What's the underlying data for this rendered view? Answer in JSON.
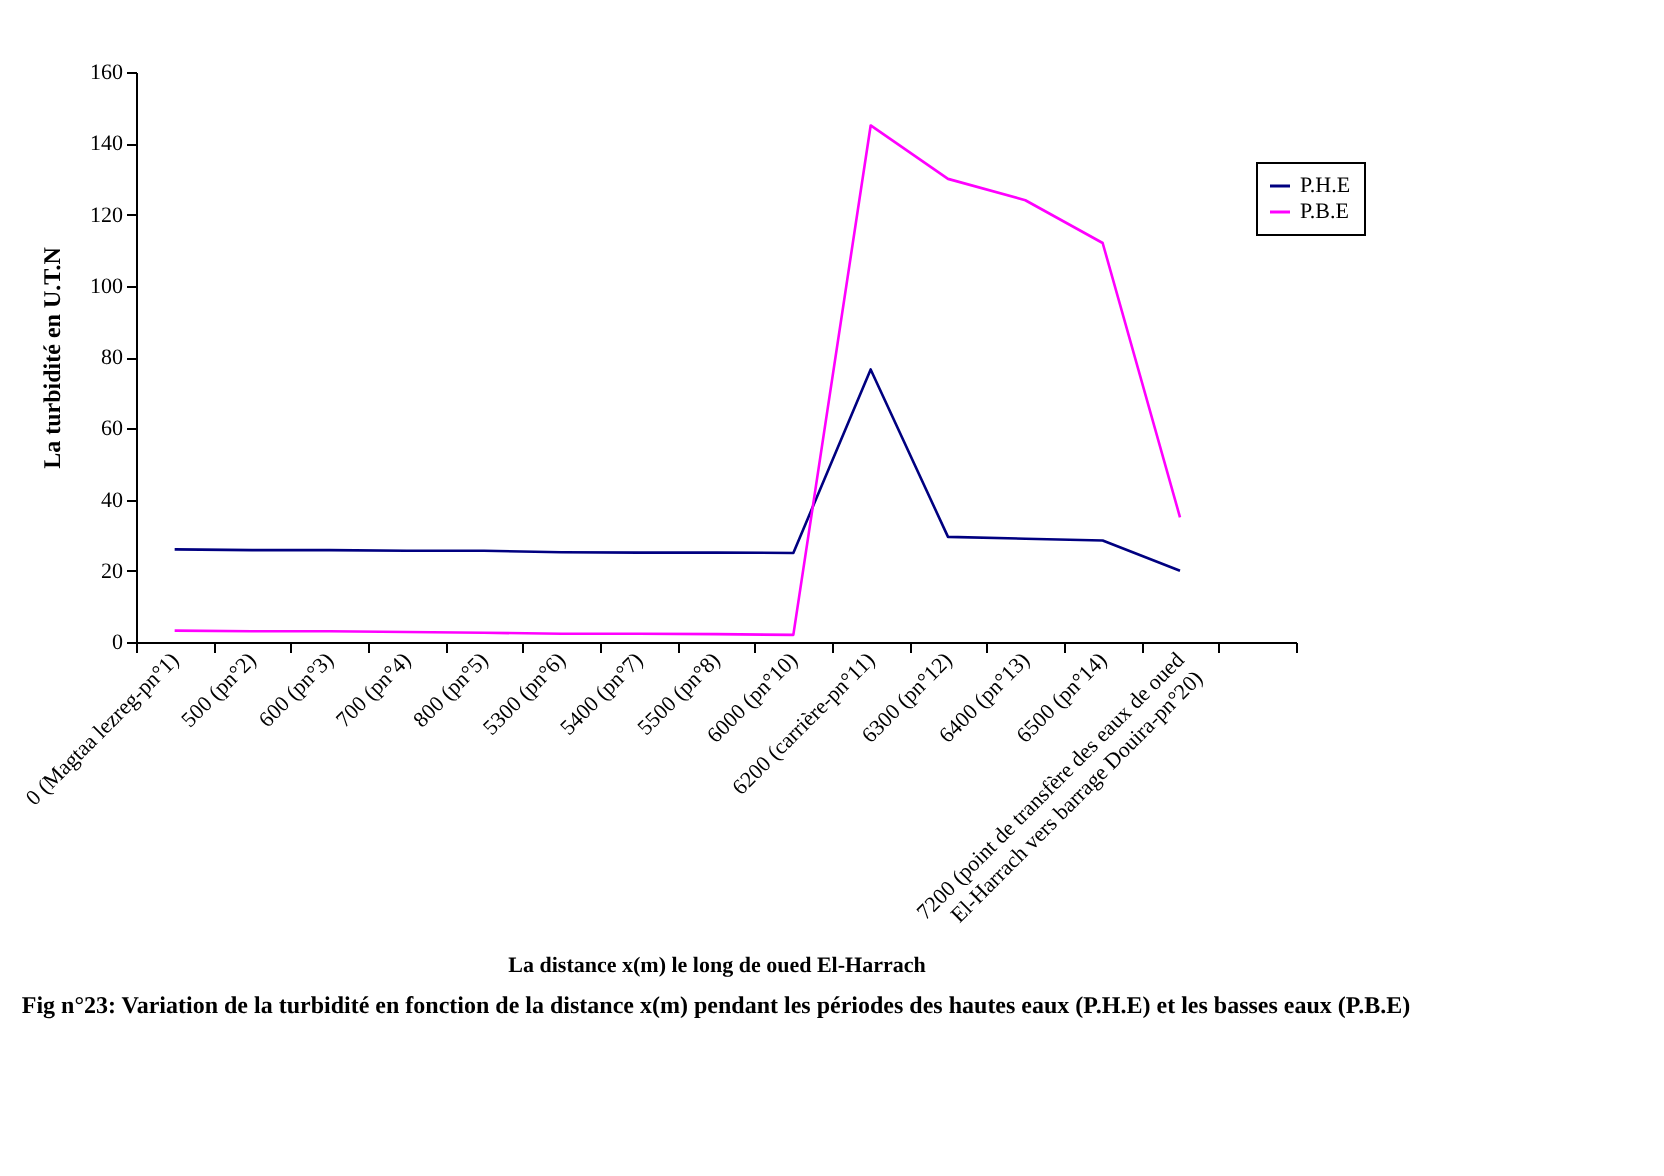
{
  "chart_data": {
    "type": "line",
    "title": "Fig n°23: Variation de la turbidité en fonction de la distance x(m) pendant les périodes des hautes eaux (P.H.E) et les basses eaux (P.B.E)",
    "xlabel": "La distance x(m) le long de oued El-Harrach",
    "ylabel": "La turbidité en U.T.N",
    "categories": [
      "0 (Magtaa lezreg-pn°1)",
      "500 (pn°2)",
      "600 (pn°3)",
      "700 (pn°4)",
      "800 (pn°5)",
      "5300 (pn°6)",
      "5400 (pn°7)",
      "5500 (pn°8)",
      "6000 (pn°10)",
      "6200 (carrière-pn°11)",
      "6300 (pn°12)",
      "6400 (pn°13)",
      "6500 (pn°14)",
      "7200 (point de transfère des eaux de oued El-Harrach vers barrage Douira-pn°20)",
      null
    ],
    "series": [
      {
        "name": "P.H.E",
        "color": "#000080",
        "values": [
          26,
          25.8,
          25.8,
          25.6,
          25.6,
          25.2,
          25.1,
          25.1,
          25,
          76.5,
          29.5,
          29,
          28.5,
          20,
          null
        ]
      },
      {
        "name": "P.B.E",
        "color": "#ff00ff",
        "values": [
          3.2,
          3,
          3,
          2.8,
          2.6,
          2.3,
          2.3,
          2.2,
          2,
          145,
          130,
          124,
          112,
          35,
          null
        ]
      }
    ],
    "ylim": [
      0,
      160
    ],
    "yticks": [
      0,
      20,
      40,
      60,
      80,
      100,
      120,
      140,
      160
    ],
    "grid": false,
    "legend": "top right",
    "marker": "none",
    "line_style": "solid"
  }
}
